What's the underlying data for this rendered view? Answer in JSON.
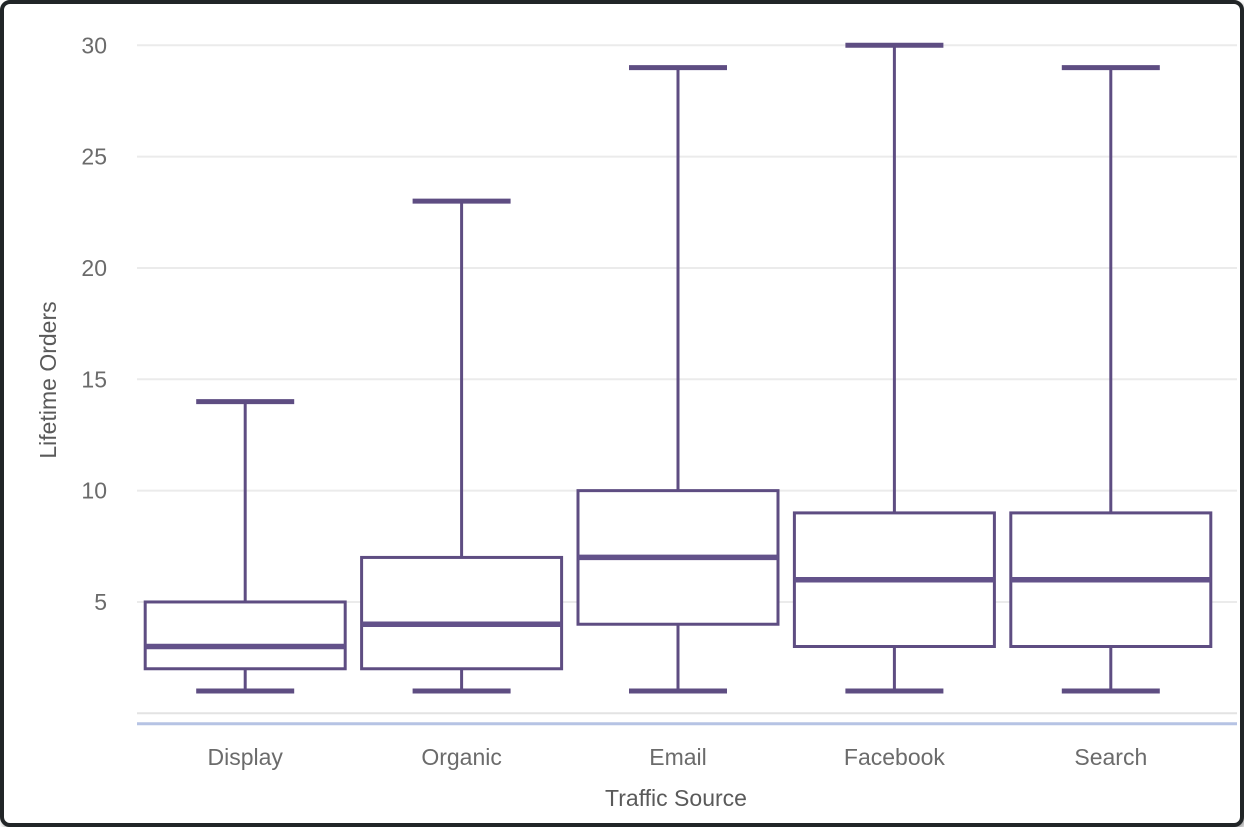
{
  "chart_data": {
    "type": "boxplot",
    "title": "",
    "xlabel": "Traffic Source",
    "ylabel": "Lifetime Orders",
    "categories": [
      "Display",
      "Organic",
      "Email",
      "Facebook",
      "Search"
    ],
    "series": [
      {
        "name": "Display",
        "min": 1,
        "q1": 2,
        "median": 3,
        "q3": 5,
        "max": 14
      },
      {
        "name": "Organic",
        "min": 1,
        "q1": 2,
        "median": 4,
        "q3": 7,
        "max": 23
      },
      {
        "name": "Email",
        "min": 1,
        "q1": 4,
        "median": 7,
        "q3": 10,
        "max": 29
      },
      {
        "name": "Facebook",
        "min": 1,
        "q1": 3,
        "median": 6,
        "q3": 9,
        "max": 30
      },
      {
        "name": "Search",
        "min": 1,
        "q1": 3,
        "median": 6,
        "q3": 9,
        "max": 29
      }
    ],
    "yticks": [
      5,
      10,
      15,
      20,
      25,
      30
    ],
    "gridline_values": [
      0,
      5,
      10,
      15,
      20,
      25,
      30
    ],
    "ylim": [
      0,
      30.5
    ],
    "grid": true,
    "legend": false,
    "colors": {
      "box_stroke": "#5e4d82",
      "median_stroke": "#63528a",
      "box_fill": "#ffffff",
      "gridline": "#ebebeb",
      "zero_gridline": "#e3e3e3",
      "baseline_blue": "#b6c3e4",
      "tick_label": "#6b6b6b",
      "axis_title": "#5a5a5a",
      "frame_border": "#212527",
      "background": "#ffffff"
    }
  }
}
